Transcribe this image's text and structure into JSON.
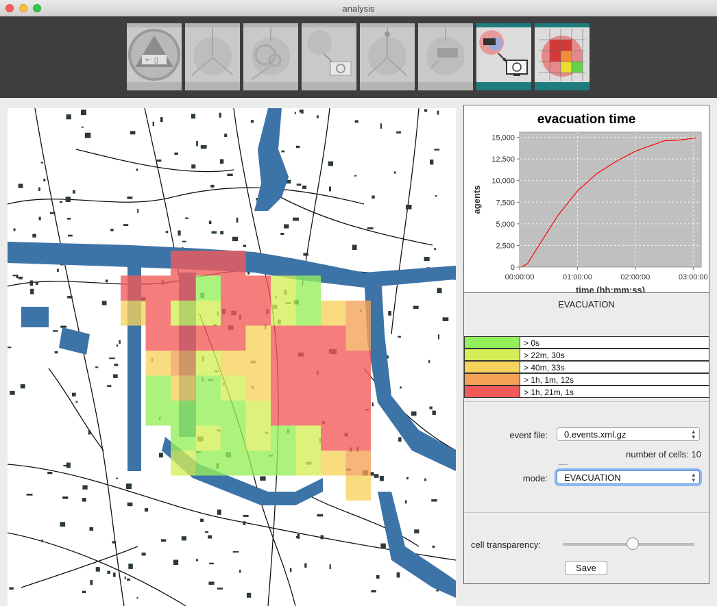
{
  "window": {
    "title": "analysis"
  },
  "toolbar": {
    "tools": [
      {
        "name": "evacuation-area-tool",
        "active": false
      },
      {
        "name": "network-tool",
        "active": false
      },
      {
        "name": "population-tool",
        "active": false
      },
      {
        "name": "simulation-export-tool",
        "active": false
      },
      {
        "name": "road-closure-tool",
        "active": false
      },
      {
        "name": "bus-stop-tool",
        "active": false
      },
      {
        "name": "simulation-run-tool",
        "active": true
      },
      {
        "name": "analysis-grid-tool",
        "active": true
      }
    ]
  },
  "chart_data": {
    "type": "line",
    "title": "evacuation time",
    "xlabel": "time (hh:mm:ss)",
    "ylabel": "agents",
    "x_ticks": [
      "00:00:00",
      "01:00:00",
      "02:00:00",
      "03:00:00"
    ],
    "y_ticks": [
      "0",
      "2,500",
      "5,000",
      "7,500",
      "10,000",
      "12,500",
      "15,000"
    ],
    "xlim_seconds": [
      0,
      11300
    ],
    "ylim": [
      0,
      15600
    ],
    "grid": true,
    "series": [
      {
        "color": "#ff0000",
        "points": [
          [
            120,
            0
          ],
          [
            500,
            400
          ],
          [
            1200,
            2500
          ],
          [
            2400,
            6000
          ],
          [
            3600,
            8800
          ],
          [
            4800,
            10800
          ],
          [
            6000,
            12200
          ],
          [
            7200,
            13400
          ],
          [
            8400,
            14200
          ],
          [
            9000,
            14600
          ],
          [
            10000,
            14700
          ],
          [
            11000,
            14950
          ]
        ]
      }
    ]
  },
  "legend": {
    "title": "EVACUATION",
    "rows": [
      {
        "label": "> 0s",
        "color": "#94f05a"
      },
      {
        "label": "> 22m, 30s",
        "color": "#d4ee57"
      },
      {
        "label": "> 40m, 33s",
        "color": "#f6d35c"
      },
      {
        "label": "> 1h, 1m, 12s",
        "color": "#f4a156"
      },
      {
        "label": "> 1h, 21m, 1s",
        "color": "#f25a59"
      }
    ]
  },
  "controls": {
    "event_file_label": "event file:",
    "event_file_value": "0.events.xml.gz",
    "cells_text": "number of cells: 10",
    "mode_label": "mode:",
    "mode_value": "EVACUATION",
    "transparency_label": "cell transparency:",
    "transparency_value": 0.53,
    "save_label": "Save"
  },
  "map": {
    "water_color": "#3d74a8",
    "cell_levels": [
      [
        -1,
        -1,
        4,
        4,
        4,
        -1,
        -1,
        -1,
        -1,
        -1
      ],
      [
        4,
        4,
        4,
        0,
        4,
        4,
        1,
        0,
        -1,
        -1
      ],
      [
        2,
        4,
        1,
        1,
        4,
        4,
        1,
        0,
        2,
        3
      ],
      [
        -1,
        4,
        4,
        4,
        4,
        2,
        4,
        4,
        4,
        3
      ],
      [
        -1,
        2,
        3,
        1,
        2,
        2,
        4,
        4,
        4,
        4
      ],
      [
        -1,
        0,
        2,
        0,
        1,
        2,
        4,
        4,
        4,
        4
      ],
      [
        -1,
        0,
        0,
        0,
        0,
        1,
        4,
        4,
        4,
        4
      ],
      [
        -1,
        -1,
        0,
        1,
        0,
        1,
        0,
        1,
        4,
        4
      ],
      [
        -1,
        -1,
        1,
        0,
        0,
        0,
        0,
        1,
        2,
        3
      ],
      [
        -1,
        -1,
        -1,
        -1,
        -1,
        -1,
        -1,
        -1,
        -1,
        2
      ]
    ]
  }
}
